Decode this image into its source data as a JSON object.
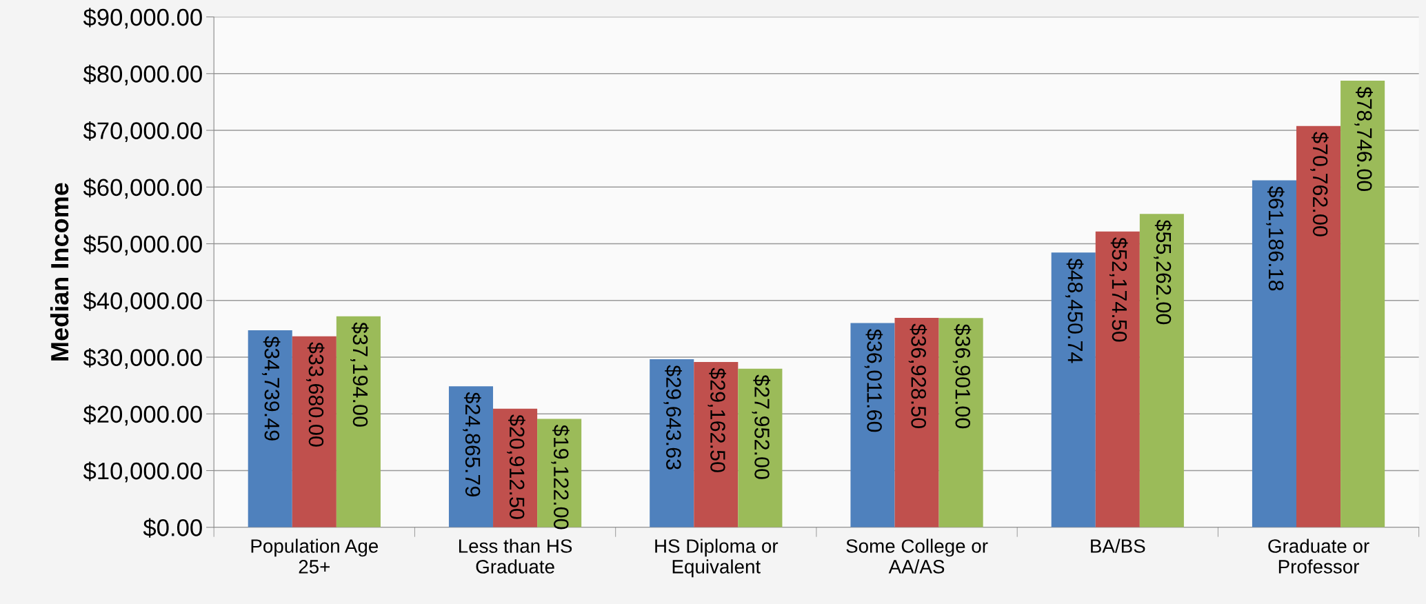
{
  "chart_data": {
    "type": "bar",
    "ylabel": "Median Income",
    "categories": [
      "Population Age\n25+",
      "Less than HS\nGraduate",
      "HS Diploma or\nEquivalent",
      "Some College or\nAA/AS",
      "BA/BS",
      "Graduate or\nProfessor"
    ],
    "series": [
      {
        "color": "#4f81bd",
        "values": [
          34739.49,
          24865.79,
          29643.63,
          36011.6,
          48450.74,
          61186.18
        ],
        "value_labels": [
          "$34,739.49",
          "$24,865.79",
          "$29,643.63",
          "$36,011.60",
          "$48,450.74",
          "$61,186.18"
        ]
      },
      {
        "color": "#c0504d",
        "values": [
          33680.0,
          20912.5,
          29162.5,
          36928.5,
          52174.5,
          70762.0
        ],
        "value_labels": [
          "$33,680.00",
          "$20,912.50",
          "$29,162.50",
          "$36,928.50",
          "$52,174.50",
          "$70,762.00"
        ]
      },
      {
        "color": "#9bbb59",
        "values": [
          37194.0,
          19122.0,
          27952.0,
          36901.0,
          55262.0,
          78746.0
        ],
        "value_labels": [
          "$37,194.00",
          "$19,122.00",
          "$27,952.00",
          "$36,901.00",
          "$55,262.00",
          "$78,746.00"
        ]
      }
    ],
    "ylim": [
      0,
      90000
    ],
    "yticks": [
      {
        "value": 0,
        "label": "$0.00"
      },
      {
        "value": 10000,
        "label": "$10,000.00"
      },
      {
        "value": 20000,
        "label": "$20,000.00"
      },
      {
        "value": 30000,
        "label": "$30,000.00"
      },
      {
        "value": 40000,
        "label": "$40,000.00"
      },
      {
        "value": 50000,
        "label": "$50,000.00"
      },
      {
        "value": 60000,
        "label": "$60,000.00"
      },
      {
        "value": 70000,
        "label": "$70,000.00"
      },
      {
        "value": 80000,
        "label": "$80,000.00"
      },
      {
        "value": 90000,
        "label": "$90,000.00"
      }
    ],
    "grid": "y"
  }
}
